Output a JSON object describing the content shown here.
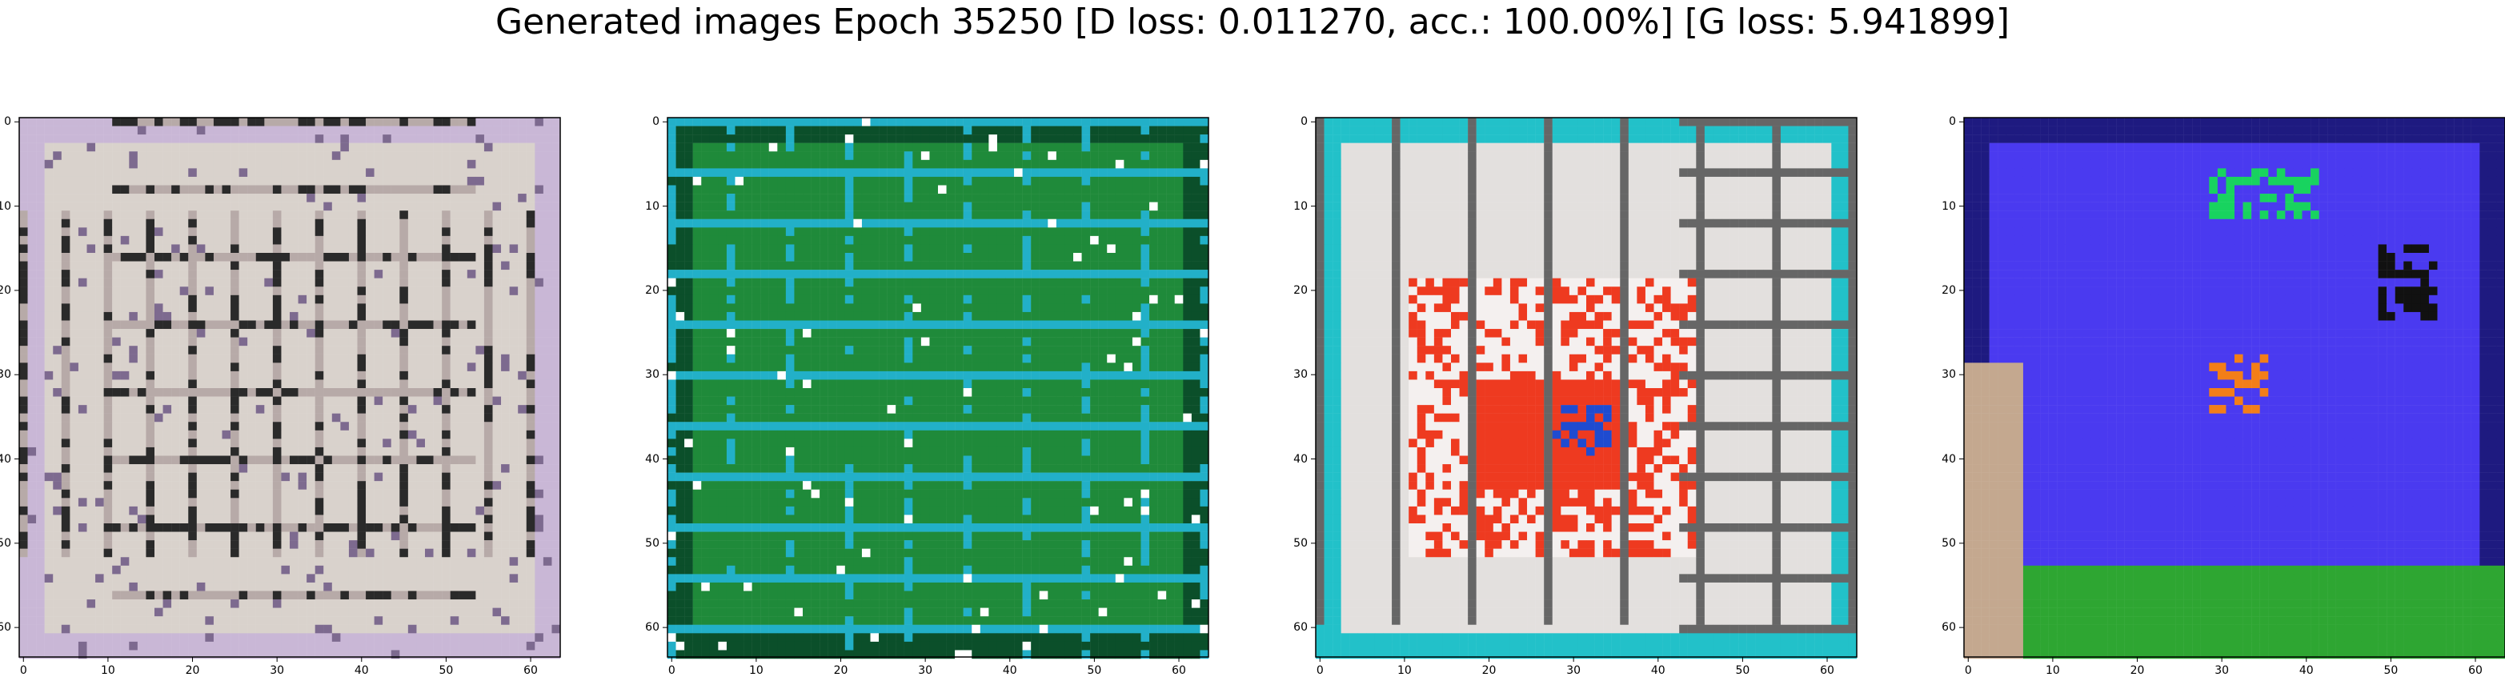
{
  "figure": {
    "title": "Generated images Epoch 35250 [D loss: 0.011270, acc.: 100.00%] [G loss: 5.941899]"
  },
  "axis": {
    "y_ticks": [
      "0",
      "10",
      "20",
      "30",
      "40",
      "50",
      "60"
    ],
    "x_ticks": [
      "0",
      "10",
      "20",
      "30",
      "40",
      "50",
      "60"
    ],
    "image_size": 64
  },
  "panels": [
    {
      "description_colors": {
        "base": "#d9d2cc",
        "accent": "#2a2a2a",
        "edge": "#c9b7d6"
      }
    },
    {
      "description_colors": {
        "base": "#1f8a3a",
        "accent": "#22b0c8",
        "edge": "#0b4f2a"
      }
    },
    {
      "description_colors": {
        "base": "#e3e0de",
        "accent": "#ee3a20",
        "edge": "#22c1c9"
      }
    },
    {
      "description_colors": {
        "base": "#4a3af0",
        "accent": "#2ea632",
        "edge": "#1e1a80"
      }
    }
  ]
}
